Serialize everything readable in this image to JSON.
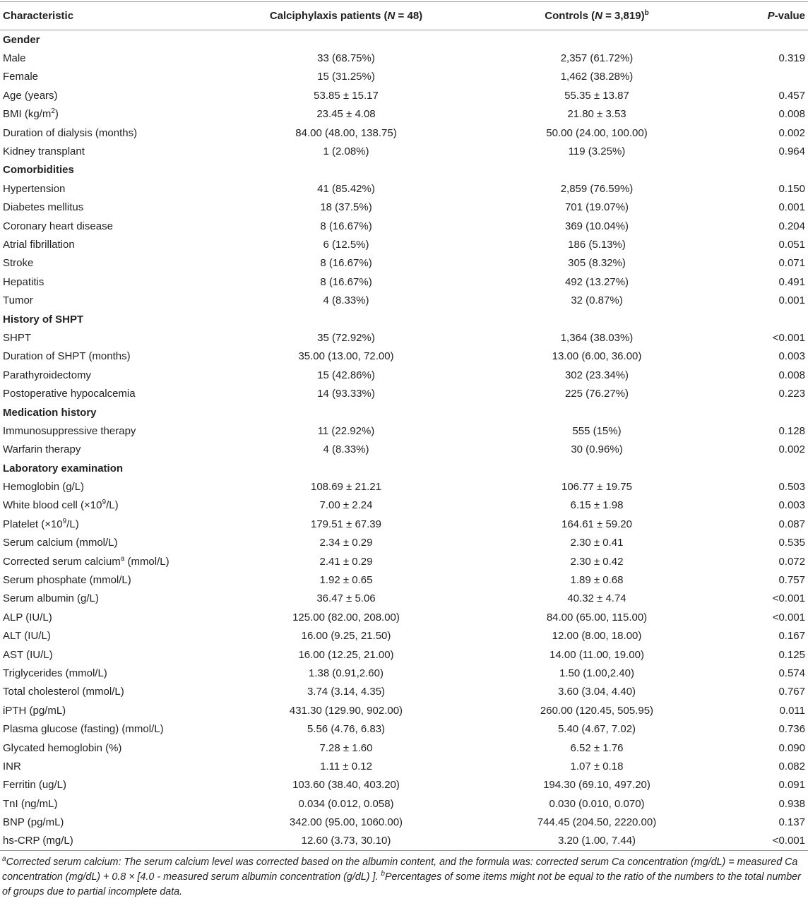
{
  "table": {
    "header": [
      "Characteristic",
      [
        "Calciphylaxis patients (",
        {
          "i": "N"
        },
        " = 48)"
      ],
      [
        "Controls (",
        {
          "i": "N"
        },
        " = 3,819)",
        {
          "sup": "b"
        }
      ],
      [
        {
          "i": "P"
        },
        "-value"
      ]
    ],
    "rows": [
      [
        "Gender"
      ],
      [
        "Male",
        "33 (68.75%)",
        "2,357 (61.72%)",
        "0.319"
      ],
      [
        "Female",
        "15 (31.25%)",
        "1,462 (38.28%)",
        null
      ],
      [
        "Age (years)",
        "53.85 ± 15.17",
        "55.35 ± 13.87",
        "0.457"
      ],
      [
        [
          "BMI (kg/m",
          {
            "sup": "2"
          },
          ")"
        ],
        "23.45 ± 4.08",
        "21.80 ± 3.53",
        "0.008"
      ],
      [
        "Duration of dialysis (months)",
        "84.00 (48.00, 138.75)",
        "50.00 (24.00, 100.00)",
        "0.002"
      ],
      [
        "Kidney transplant",
        "1 (2.08%)",
        "119 (3.25%)",
        "0.964"
      ],
      [
        "Comorbidities"
      ],
      [
        "Hypertension",
        "41 (85.42%)",
        "2,859 (76.59%)",
        "0.150"
      ],
      [
        "Diabetes mellitus",
        "18 (37.5%)",
        "701 (19.07%)",
        "0.001"
      ],
      [
        "Coronary heart disease",
        "8 (16.67%)",
        "369 (10.04%)",
        "0.204"
      ],
      [
        "Atrial fibrillation",
        "6 (12.5%)",
        "186 (5.13%)",
        "0.051"
      ],
      [
        "Stroke",
        "8 (16.67%)",
        "305 (8.32%)",
        "0.071"
      ],
      [
        "Hepatitis",
        "8 (16.67%)",
        "492 (13.27%)",
        "0.491"
      ],
      [
        "Tumor",
        "4 (8.33%)",
        "32 (0.87%)",
        "0.001"
      ],
      [
        "History of SHPT"
      ],
      [
        "SHPT",
        "35 (72.92%)",
        "1,364 (38.03%)",
        "<0.001"
      ],
      [
        "Duration of SHPT (months)",
        "35.00 (13.00, 72.00)",
        "13.00 (6.00, 36.00)",
        "0.003"
      ],
      [
        "Parathyroidectomy",
        "15 (42.86%)",
        "302 (23.34%)",
        "0.008"
      ],
      [
        "Postoperative hypocalcemia",
        "14 (93.33%)",
        "225 (76.27%)",
        "0.223"
      ],
      [
        "Medication history"
      ],
      [
        "Immunosuppressive therapy",
        "11 (22.92%)",
        "555 (15%)",
        "0.128"
      ],
      [
        "Warfarin therapy",
        "4 (8.33%)",
        "30 (0.96%)",
        "0.002"
      ],
      [
        "Laboratory examination"
      ],
      [
        "Hemoglobin (g/L)",
        "108.69 ± 21.21",
        "106.77 ± 19.75",
        "0.503"
      ],
      [
        [
          "White blood cell (×10",
          {
            "sup": "9"
          },
          "/L)"
        ],
        "7.00 ± 2.24",
        "6.15 ± 1.98",
        "0.003"
      ],
      [
        [
          "Platelet (×10",
          {
            "sup": "9"
          },
          "/L)"
        ],
        "179.51 ± 67.39",
        "164.61 ± 59.20",
        "0.087"
      ],
      [
        "Serum calcium (mmol/L)",
        "2.34 ± 0.29",
        "2.30 ± 0.41",
        "0.535"
      ],
      [
        [
          "Corrected serum calcium",
          {
            "sup": "a"
          },
          " (mmol/L)"
        ],
        "2.41 ± 0.29",
        "2.30 ± 0.42",
        "0.072"
      ],
      [
        "Serum phosphate (mmol/L)",
        "1.92 ± 0.65",
        "1.89 ± 0.68",
        "0.757"
      ],
      [
        "Serum albumin (g/L)",
        "36.47 ± 5.06",
        "40.32 ± 4.74",
        "<0.001"
      ],
      [
        "ALP (IU/L)",
        "125.00 (82.00, 208.00)",
        "84.00 (65.00, 115.00)",
        "<0.001"
      ],
      [
        "ALT (IU/L)",
        "16.00 (9.25, 21.50)",
        "12.00 (8.00, 18.00)",
        "0.167"
      ],
      [
        "AST (IU/L)",
        "16.00 (12.25, 21.00)",
        "14.00 (11.00, 19.00)",
        "0.125"
      ],
      [
        "Triglycerides (mmol/L)",
        "1.38 (0.91,2.60)",
        "1.50 (1.00,2.40)",
        "0.574"
      ],
      [
        "Total cholesterol (mmol/L)",
        "3.74 (3.14, 4.35)",
        "3.60 (3.04, 4.40)",
        "0.767"
      ],
      [
        "iPTH (pg/mL)",
        "431.30 (129.90, 902.00)",
        "260.00 (120.45, 505.95)",
        "0.011"
      ],
      [
        "Plasma glucose (fasting) (mmol/L)",
        "5.56 (4.76, 6.83)",
        "5.40 (4.67, 7.02)",
        "0.736"
      ],
      [
        "Glycated hemoglobin (%)",
        "7.28 ± 1.60",
        "6.52 ± 1.76",
        "0.090"
      ],
      [
        "INR",
        "1.11 ± 0.12",
        "1.07 ± 0.18",
        "0.082"
      ],
      [
        "Ferritin (ug/L)",
        "103.60 (38.40, 403.20)",
        "194.30 (69.10, 497.20)",
        "0.091"
      ],
      [
        "TnI (ng/mL)",
        "0.034 (0.012, 0.058)",
        "0.030 (0.010, 0.070)",
        "0.938"
      ],
      [
        "BNP (pg/mL)",
        "342.00 (95.00, 1060.00)",
        "744.45 (204.50, 2220.00)",
        "0.137"
      ],
      [
        "hs-CRP (mg/L)",
        "12.60 (3.73, 30.10)",
        "3.20 (1.00, 7.44)",
        "<0.001"
      ]
    ],
    "footnote": [
      {
        "sup": "a"
      },
      "Corrected serum calcium: The serum calcium level was corrected based on the albumin content, and the formula was: corrected serum Ca concentration (mg/dL) = measured Ca concentration (mg/dL) + 0.8 × [4.0 - measured serum albumin concentration (g/dL) ]. ",
      {
        "sup": "b"
      },
      "Percentages of some items might not be equal to the ratio of the numbers to the total number of groups due to partial incomplete data."
    ]
  }
}
